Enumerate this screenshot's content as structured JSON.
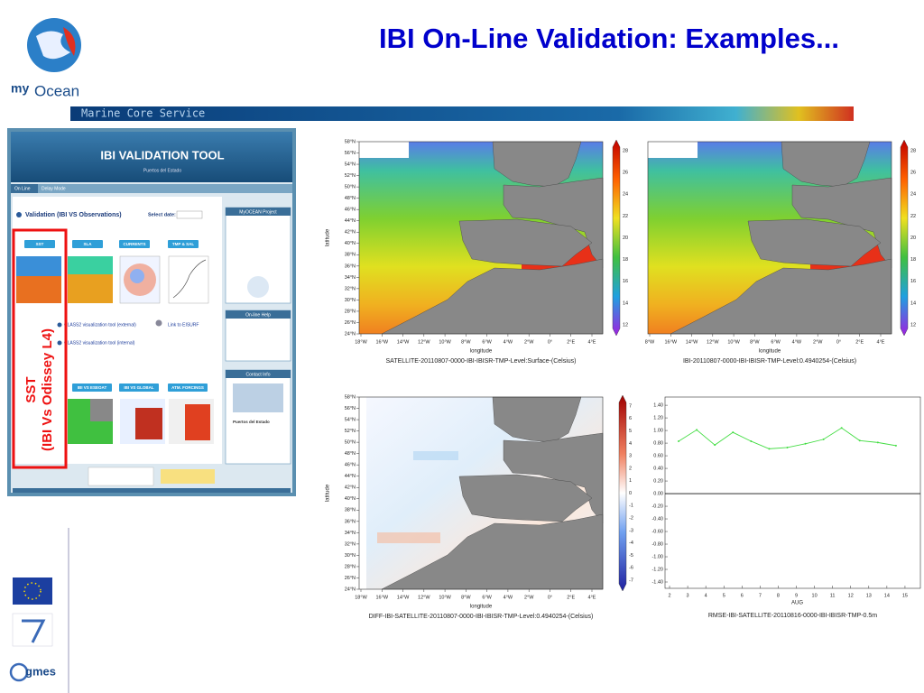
{
  "header": {
    "title": "IBI On-Line Validation: Examples...",
    "band_text": "Marine Core Service",
    "logo_text": "Ocean"
  },
  "annotation": {
    "lines": [
      "SST",
      "(IBI Vs Odissey L4)"
    ]
  },
  "tool": {
    "title": "IBI VALIDATION TOOL",
    "subtitle": "Puertos del Estado",
    "tabs": [
      "On Line",
      "Delay Mode"
    ],
    "section": "Validation (IBI VS Observations)",
    "date_label": "Select date:",
    "buttons": [
      "SST",
      "SLA",
      "CURRENTS",
      "TMP & SAL"
    ],
    "links": [
      "CLASS2 visualization tool (external)",
      "Link to EISURF",
      "CLASS2 visualization tool (internal)"
    ],
    "buttons2": [
      "IBI VS ESEOAT",
      "IBI VS GLOBAL",
      "ATM. FORCINGS"
    ],
    "sidebar": [
      "MyOCEAN Project",
      "On-line Help",
      "Contact Info"
    ],
    "contact": "Puertos del Estado"
  },
  "logos": {
    "gmes": "gmes"
  },
  "maps": [
    {
      "lat_ticks": [
        "58°N",
        "56°N",
        "54°N",
        "52°N",
        "50°N",
        "48°N",
        "46°N",
        "44°N",
        "42°N",
        "40°N",
        "38°N",
        "36°N",
        "34°N",
        "32°N",
        "30°N",
        "28°N",
        "26°N",
        "24°N"
      ],
      "lon_ticks": [
        "18°W",
        "16°W",
        "14°W",
        "12°W",
        "10°W",
        "8°W",
        "6°W",
        "4°W",
        "2°W",
        "0°",
        "2°E",
        "4°E"
      ],
      "colorbar_ticks": [
        28,
        26,
        24,
        22,
        20,
        18,
        16,
        14,
        12
      ],
      "x_label": "longitude",
      "y_label": "latitude",
      "caption": "SATELLITE-20110807-0000-IBI-IBISR-TMP-Level:Surface-(Celsius)"
    },
    {
      "lon_ticks": [
        "8°W",
        "16°W",
        "14°W",
        "12°W",
        "10°W",
        "8°W",
        "6°W",
        "4°W",
        "2°W",
        "0°",
        "2°E",
        "4°E"
      ],
      "colorbar_ticks": [
        28,
        26,
        24,
        22,
        20,
        18,
        16,
        14,
        12
      ],
      "x_label": "longitude",
      "caption": "IBI-20110807-0000-IBI-IBISR-TMP-Level:0.4940254-(Celsius)"
    },
    {
      "lat_ticks": [
        "58°N",
        "56°N",
        "54°N",
        "52°N",
        "50°N",
        "48°N",
        "46°N",
        "44°N",
        "42°N",
        "40°N",
        "38°N",
        "36°N",
        "34°N",
        "32°N",
        "30°N",
        "28°N",
        "26°N",
        "24°N"
      ],
      "lon_ticks": [
        "18°W",
        "16°W",
        "14°W",
        "12°W",
        "10°W",
        "8°W",
        "6°W",
        "4°W",
        "2°W",
        "0°",
        "2°E",
        "4°E"
      ],
      "colorbar_ticks": [
        7,
        6,
        5,
        4,
        3,
        2,
        1,
        0,
        -1,
        -2,
        -3,
        -4,
        -5,
        -6,
        -7
      ],
      "x_label": "longitude",
      "y_label": "latitude",
      "caption": "DIFF-IBI-SATELLITE-20110807-0000-IBI-IBISR-TMP-Level:0.4940254-(Celsius)"
    }
  ],
  "chart_data": {
    "type": "line",
    "x_label": "AUG",
    "caption": "RMSE-IBI-SATELLITE-20110816-0000-IBI-IBISR-TMP-0.5m",
    "x": [
      2.5,
      3.5,
      4.5,
      5.5,
      6.5,
      7.5,
      8.5,
      9.5,
      10.5,
      11.5,
      12.5,
      13.5,
      14.5
    ],
    "values": [
      0.83,
      1.01,
      0.77,
      0.97,
      0.83,
      0.71,
      0.73,
      0.79,
      0.86,
      1.04,
      0.84,
      0.81,
      0.76
    ],
    "color": "#44dd44",
    "xlim": [
      1.75,
      15.85
    ],
    "xticks": [
      2,
      3,
      4,
      5,
      6,
      7,
      8,
      9,
      10,
      11,
      12,
      13,
      14,
      15
    ],
    "ylim": [
      -1.5,
      1.53
    ],
    "yticks": [
      {
        "value": 1.4,
        "label": "1.40"
      },
      {
        "value": 1.2,
        "label": "1.20"
      },
      {
        "value": 1.0,
        "label": "1.00"
      },
      {
        "value": 0.8,
        "label": "0.80"
      },
      {
        "value": 0.6,
        "label": "0.60"
      },
      {
        "value": 0.4,
        "label": "0.40"
      },
      {
        "value": 0.2,
        "label": "0.20"
      },
      {
        "value": 0,
        "label": "0.00"
      },
      {
        "value": -0.2,
        "label": "-0.20"
      },
      {
        "value": -0.4,
        "label": "-0.40"
      },
      {
        "value": -0.6,
        "label": "-0.60"
      },
      {
        "value": -0.8,
        "label": "-0.80"
      },
      {
        "value": -1.0,
        "label": "-1.00"
      },
      {
        "value": -1.2,
        "label": "-1.20"
      },
      {
        "value": -1.4,
        "label": "-1.40"
      }
    ]
  }
}
